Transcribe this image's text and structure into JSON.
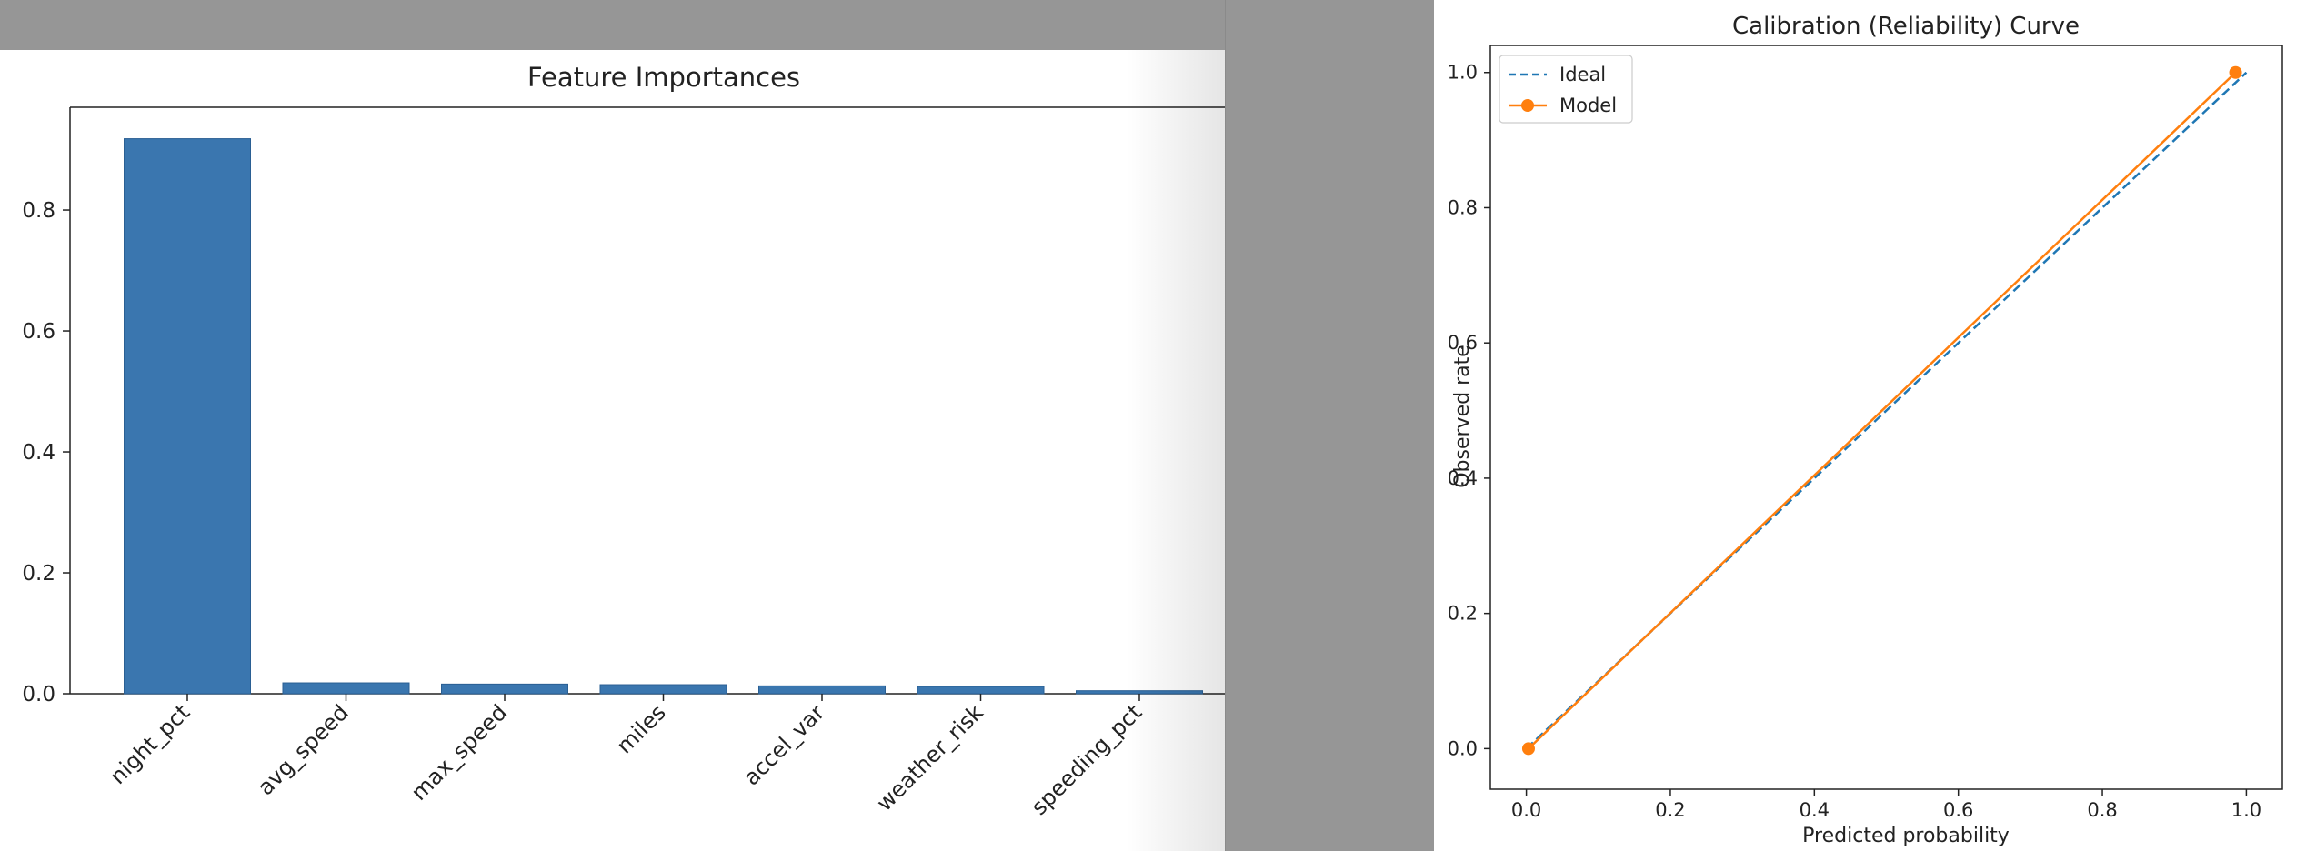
{
  "chart_data": [
    {
      "type": "bar",
      "title": "Feature Importances",
      "xlabel": "",
      "ylabel": "",
      "categories": [
        "night_pct",
        "avg_speed",
        "max_speed",
        "miles",
        "accel_var",
        "weather_risk",
        "speeding_pct"
      ],
      "values": [
        0.918,
        0.018,
        0.016,
        0.015,
        0.013,
        0.012,
        0.005
      ],
      "ylim": [
        0,
        0.97
      ],
      "yticks": [
        "0.0",
        "0.2",
        "0.4",
        "0.6",
        "0.8"
      ],
      "bar_color": "#3a76af",
      "grid": false
    },
    {
      "type": "line",
      "title": "Calibration (Reliability) Curve",
      "xlabel": "Predicted probability",
      "ylabel": "Observed rate",
      "xlim": [
        -0.05,
        1.05
      ],
      "ylim": [
        -0.06,
        1.04
      ],
      "xticks": [
        "0.0",
        "0.2",
        "0.4",
        "0.6",
        "0.8",
        "1.0"
      ],
      "yticks": [
        "0.0",
        "0.2",
        "0.4",
        "0.6",
        "0.8",
        "1.0"
      ],
      "legend": "top-left",
      "grid": false,
      "series": [
        {
          "name": "Ideal",
          "x": [
            0,
            1
          ],
          "y": [
            0,
            1
          ],
          "color": "#1f77b4",
          "style": "dashed"
        },
        {
          "name": "Model",
          "x": [
            0.003,
            0.985
          ],
          "y": [
            0.0,
            1.0
          ],
          "color": "#ff7f0e",
          "style": "solid-marker"
        }
      ]
    }
  ]
}
